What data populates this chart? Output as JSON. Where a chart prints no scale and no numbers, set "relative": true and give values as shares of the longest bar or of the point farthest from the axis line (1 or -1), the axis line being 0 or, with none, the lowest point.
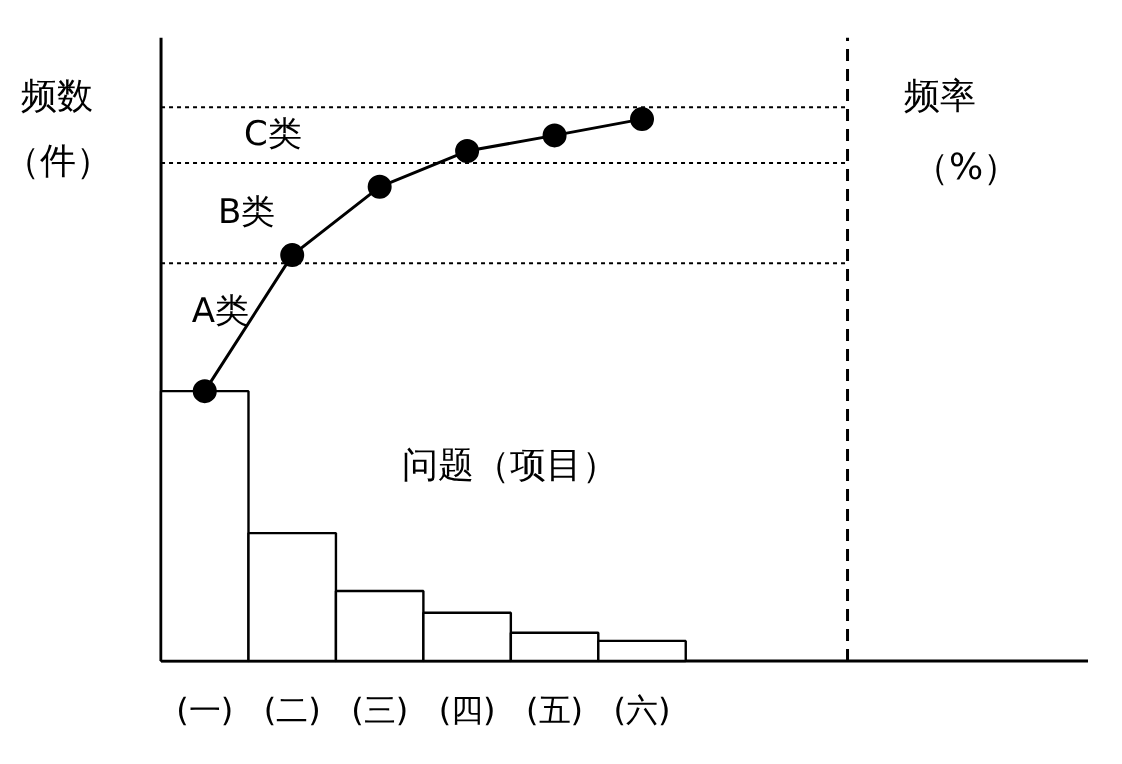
{
  "chart_data": {
    "type": "bar",
    "relative": true,
    "categories": [
      "(一)",
      "(二)",
      "(三)",
      "(四)",
      "(五)",
      "(六)"
    ],
    "xlabel": "问题（项目）",
    "ylabel": "频数（件）",
    "series": [
      {
        "color": "#ffffff",
        "values": [
          0.498,
          0.236,
          0.129,
          0.089,
          0.052,
          0.037
        ]
      },
      {
        "type": "line",
        "color": "#000000",
        "values": [
          0.498,
          0.749,
          0.875,
          0.941,
          0.97,
          1.0
        ]
      }
    ],
    "marker": "circle",
    "ref_lines": [
      {
        "axis": "y",
        "value": 0.734,
        "label": null,
        "line_style": "dotted"
      },
      {
        "axis": "y",
        "value": 0.919,
        "label": null,
        "line_style": "dotted"
      },
      {
        "axis": "y",
        "value": 1.022,
        "label": null,
        "line_style": "dotted"
      }
    ],
    "annotations": [
      "A类",
      "B类",
      "C类",
      "频率（%）"
    ],
    "grid": false
  }
}
